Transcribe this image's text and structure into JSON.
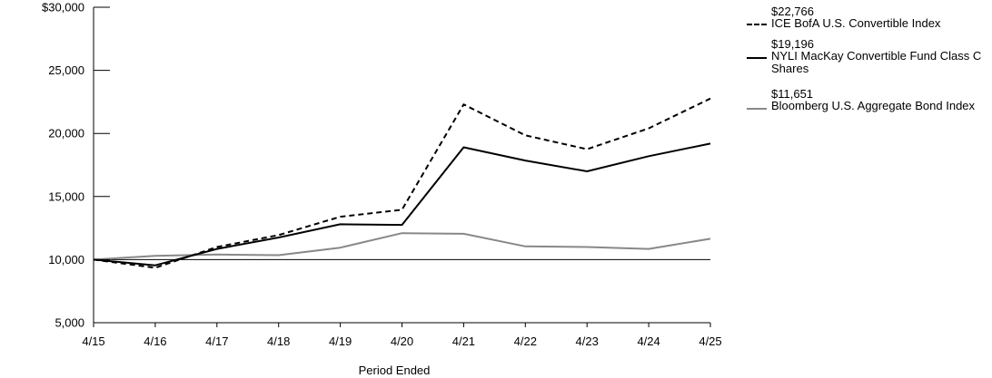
{
  "chart_data": {
    "type": "line",
    "xlabel": "Period Ended",
    "ylabel": "",
    "categories": [
      "4/15",
      "4/16",
      "4/17",
      "4/18",
      "4/19",
      "4/20",
      "4/21",
      "4/22",
      "4/23",
      "4/24",
      "4/25"
    ],
    "ylim": [
      5000,
      30000
    ],
    "yticks": [
      5000,
      10000,
      15000,
      20000,
      25000,
      30000
    ],
    "ytick_labels": [
      "5,000",
      "10,000",
      "15,000",
      "20,000",
      "25,000",
      "$30,000"
    ],
    "reference_line": 10000,
    "series": [
      {
        "name": "ICE BofA U.S. Convertible Index",
        "end_value_label": "$22,766",
        "style": "dashed",
        "color": "#000000",
        "values": [
          10000,
          9350,
          11000,
          11950,
          13400,
          13950,
          22300,
          19850,
          18750,
          20400,
          22766
        ]
      },
      {
        "name": "NYLI MacKay Convertible Fund Class C Shares",
        "end_value_label": "$19,196",
        "style": "solid",
        "color": "#000000",
        "values": [
          10000,
          9550,
          10850,
          11750,
          12800,
          12750,
          18900,
          17850,
          17000,
          18200,
          19196
        ]
      },
      {
        "name": "Bloomberg U.S. Aggregate Bond Index",
        "end_value_label": "$11,651",
        "style": "solid",
        "color": "#888888",
        "values": [
          10000,
          10300,
          10400,
          10350,
          10950,
          12100,
          12050,
          11050,
          11000,
          10850,
          11651
        ]
      }
    ]
  }
}
